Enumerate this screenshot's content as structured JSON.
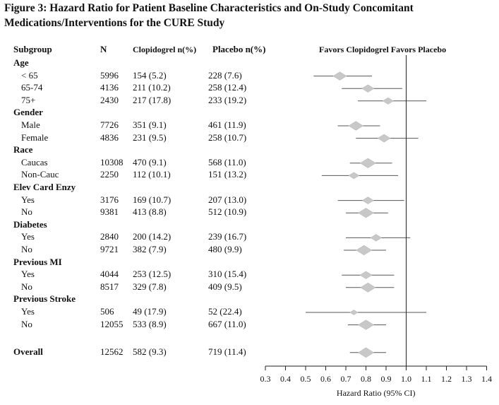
{
  "title": "Figure 3: Hazard Ratio for Patient Baseline Characteristics and On-Study Concomitant Medications/Interventions for the CURE Study",
  "headers": {
    "subgroup": "Subgroup",
    "n": "N",
    "clopidogrel": "Clopidogrel n(%)",
    "placebo": "Placebo n(%)",
    "favors": "Favors Clopidogrel Favors Placebo"
  },
  "chart_data": {
    "type": "forest",
    "xlabel": "Hazard Ratio (95% CI)",
    "xlim": [
      0.3,
      1.4
    ],
    "xticks": [
      "0.3",
      "0.4",
      "0.5",
      "0.6",
      "0.7",
      "0.8",
      "0.9",
      "1.0",
      "1.1",
      "1.2",
      "1.3",
      "1.4"
    ],
    "reference_line": 1.0,
    "groups": [
      {
        "name": "Age",
        "rows": [
          {
            "label": "< 65",
            "n": "5996",
            "clopidogrel": "154 (5.2)",
            "placebo": "228 (7.6)",
            "hr": 0.67,
            "lo": 0.54,
            "hi": 0.83
          },
          {
            "label": "65-74",
            "n": "4136",
            "clopidogrel": "211 (10.2)",
            "placebo": "258 (12.4)",
            "hr": 0.81,
            "lo": 0.68,
            "hi": 0.98
          },
          {
            "label": "75+",
            "n": "2430",
            "clopidogrel": "217 (17.8)",
            "placebo": "233 (19.2)",
            "hr": 0.91,
            "lo": 0.76,
            "hi": 1.1
          }
        ]
      },
      {
        "name": "Gender",
        "rows": [
          {
            "label": "Male",
            "n": "7726",
            "clopidogrel": "351 (9.1)",
            "placebo": "461 (11.9)",
            "hr": 0.75,
            "lo": 0.66,
            "hi": 0.87
          },
          {
            "label": "Female",
            "n": "4836",
            "clopidogrel": "231 (9.5)",
            "placebo": "258 (10.7)",
            "hr": 0.89,
            "lo": 0.75,
            "hi": 1.06
          }
        ]
      },
      {
        "name": "Race",
        "rows": [
          {
            "label": "Caucas",
            "n": "10308",
            "clopidogrel": "470 (9.1)",
            "placebo": "568 (11.0)",
            "hr": 0.81,
            "lo": 0.72,
            "hi": 0.93
          },
          {
            "label": "Non-Cauc",
            "n": "2250",
            "clopidogrel": "112 (10.1)",
            "placebo": "151 (13.2)",
            "hr": 0.74,
            "lo": 0.58,
            "hi": 0.96
          }
        ]
      },
      {
        "name": "Elev Card Enzy",
        "rows": [
          {
            "label": "Yes",
            "n": "3176",
            "clopidogrel": "169 (10.7)",
            "placebo": "207 (13.0)",
            "hr": 0.81,
            "lo": 0.66,
            "hi": 0.99
          },
          {
            "label": "No",
            "n": "9381",
            "clopidogrel": "413 (8.8)",
            "placebo": "512 (10.9)",
            "hr": 0.8,
            "lo": 0.7,
            "hi": 0.91
          }
        ]
      },
      {
        "name": "Diabetes",
        "rows": [
          {
            "label": "Yes",
            "n": "2840",
            "clopidogrel": "200 (14.2)",
            "placebo": "239 (16.7)",
            "hr": 0.85,
            "lo": 0.7,
            "hi": 1.02
          },
          {
            "label": "No",
            "n": "9721",
            "clopidogrel": "382 (7.9)",
            "placebo": "480 (9.9)",
            "hr": 0.79,
            "lo": 0.69,
            "hi": 0.9
          }
        ]
      },
      {
        "name": "Previous MI",
        "rows": [
          {
            "label": "Yes",
            "n": "4044",
            "clopidogrel": "253 (12.5)",
            "placebo": "310 (15.4)",
            "hr": 0.8,
            "lo": 0.68,
            "hi": 0.94
          },
          {
            "label": "No",
            "n": "8517",
            "clopidogrel": "329 (7.8)",
            "placebo": "409 (9.5)",
            "hr": 0.81,
            "lo": 0.7,
            "hi": 0.94
          }
        ]
      },
      {
        "name": "Previous Stroke",
        "rows": [
          {
            "label": "Yes",
            "n": "506",
            "clopidogrel": "49 (17.9)",
            "placebo": "52 (22.4)",
            "hr": 0.74,
            "lo": 0.5,
            "hi": 1.1
          },
          {
            "label": "No",
            "n": "12055",
            "clopidogrel": "533 (8.9)",
            "placebo": "667 (11.0)",
            "hr": 0.8,
            "lo": 0.71,
            "hi": 0.9
          }
        ]
      }
    ],
    "overall": {
      "label": "Overall",
      "n": "12562",
      "clopidogrel": "582 (9.3)",
      "placebo": "719 (11.4)",
      "hr": 0.8,
      "lo": 0.72,
      "hi": 0.9
    }
  },
  "colors": {
    "marker": "#c8c8c8",
    "line": "#555555",
    "axis": "#222222"
  }
}
